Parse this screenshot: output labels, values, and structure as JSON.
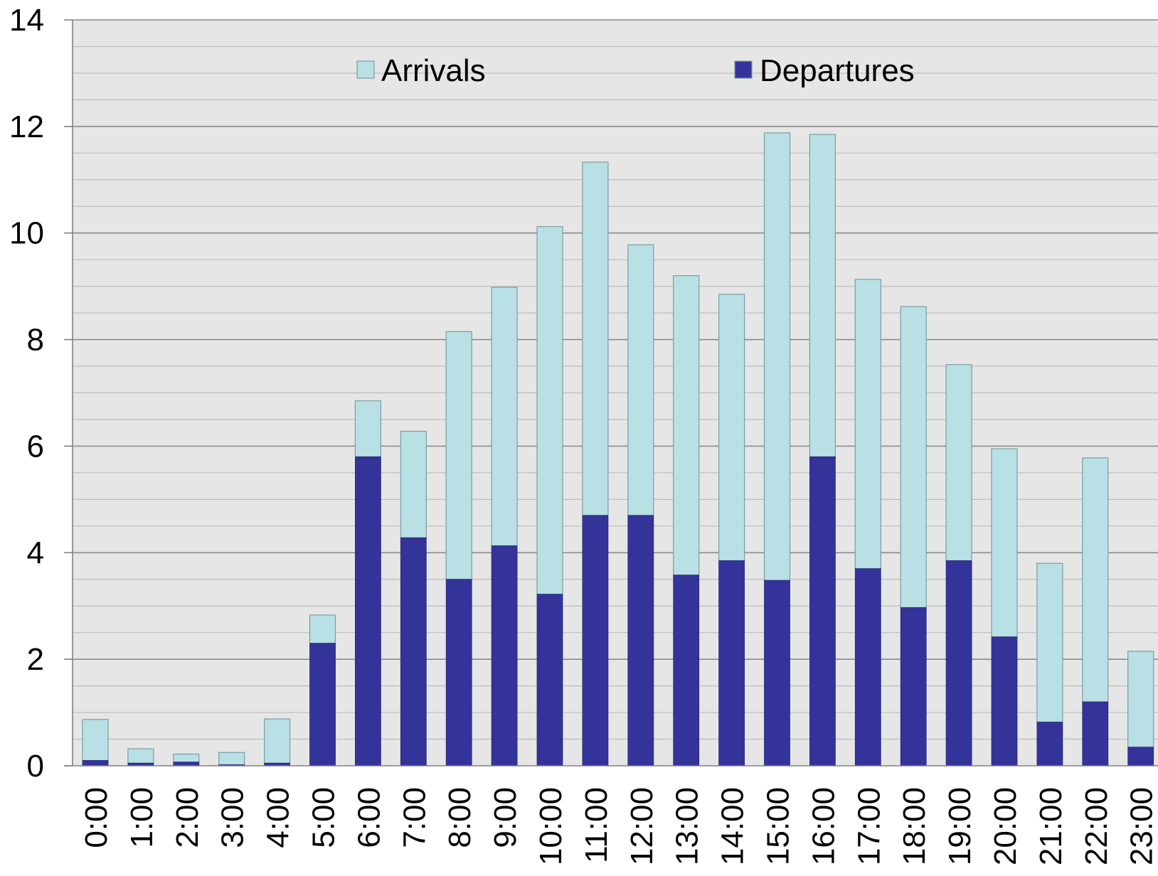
{
  "chart_data": {
    "type": "bar",
    "stacked": true,
    "title": "",
    "xlabel": "",
    "ylabel": "",
    "ylim": [
      0,
      14
    ],
    "yticks": [
      0,
      2,
      4,
      6,
      8,
      10,
      12,
      14
    ],
    "minor_grid_step": 0.5,
    "grid": true,
    "legend_position": "top",
    "categories": [
      "0:00",
      "1:00",
      "2:00",
      "3:00",
      "4:00",
      "5:00",
      "6:00",
      "7:00",
      "8:00",
      "9:00",
      "10:00",
      "11:00",
      "12:00",
      "13:00",
      "14:00",
      "15:00",
      "16:00",
      "17:00",
      "18:00",
      "19:00",
      "20:00",
      "21:00",
      "22:00",
      "23:00"
    ],
    "series": [
      {
        "name": "Departures",
        "color": "#333399",
        "values": [
          0.1,
          0.05,
          0.07,
          0.02,
          0.05,
          2.3,
          5.8,
          4.28,
          3.5,
          4.13,
          3.22,
          4.7,
          4.7,
          3.58,
          3.85,
          3.48,
          5.8,
          3.7,
          2.97,
          3.85,
          2.42,
          0.82,
          1.2,
          0.35
        ]
      },
      {
        "name": "Arrivals",
        "color": "#b9e0e4",
        "values": [
          0.77,
          0.27,
          0.15,
          0.23,
          0.83,
          0.53,
          1.05,
          2.0,
          4.65,
          4.85,
          6.9,
          6.63,
          5.08,
          5.62,
          5.0,
          8.4,
          6.05,
          5.43,
          5.65,
          3.68,
          3.53,
          2.98,
          4.58,
          1.8
        ]
      }
    ],
    "legend": [
      "Arrivals",
      "Departures"
    ],
    "colors": {
      "plot_background": "#e6e6e6",
      "major_grid": "#8c8c8c",
      "minor_grid": "#bdbdbd",
      "bar_edge": "#7a9ea3"
    }
  }
}
